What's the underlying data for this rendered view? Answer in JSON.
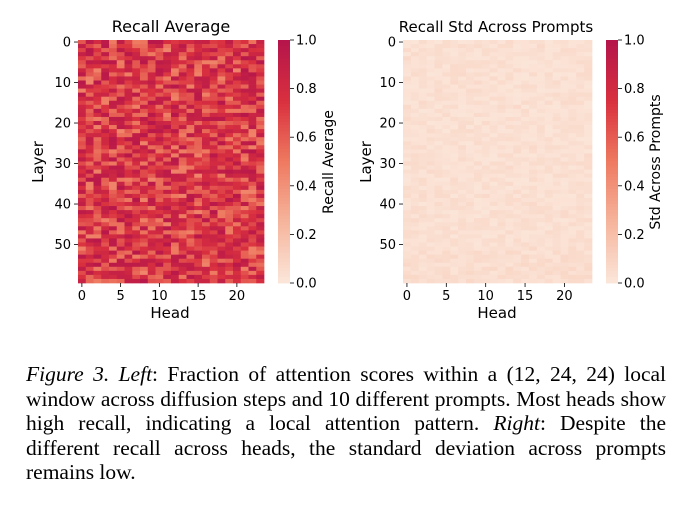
{
  "chart_data": [
    {
      "type": "heatmap",
      "title": "Recall Average",
      "xlabel": "Head",
      "ylabel": "Layer",
      "x_ticks": [
        0,
        5,
        10,
        15,
        20
      ],
      "y_ticks": [
        0,
        10,
        20,
        30,
        40,
        50
      ],
      "n_heads": 24,
      "n_layers": 60,
      "colorbar_label": "Recall Average",
      "colorbar_ticks": [
        "0.0",
        "0.2",
        "0.4",
        "0.6",
        "0.8",
        "1.0"
      ],
      "vmin": 0.0,
      "vmax": 1.0,
      "value_range_estimate": [
        0.45,
        0.98
      ],
      "colormap": [
        "#fbe5d8",
        "#f6b49c",
        "#ee7a60",
        "#d9303f",
        "#b5154b"
      ]
    },
    {
      "type": "heatmap",
      "title": "Recall Std Across Prompts",
      "xlabel": "Head",
      "ylabel": "Layer",
      "x_ticks": [
        0,
        5,
        10,
        15,
        20
      ],
      "y_ticks": [
        0,
        10,
        20,
        30,
        40,
        50
      ],
      "n_heads": 24,
      "n_layers": 60,
      "colorbar_label": "Std Across Prompts",
      "colorbar_ticks": [
        "0.0",
        "0.2",
        "0.4",
        "0.6",
        "0.8",
        "1.0"
      ],
      "vmin": 0.0,
      "vmax": 1.0,
      "value_range_estimate": [
        0.0,
        0.06
      ],
      "colormap": [
        "#fbe5d8",
        "#f6b49c",
        "#ee7a60",
        "#d9303f",
        "#b5154b"
      ]
    }
  ],
  "caption": {
    "label": "Figure 3.",
    "left_label": "Left",
    "left_text": ": Fraction of attention scores within a (12, 24, 24) local window across diffusion steps and 10 different prompts. Most heads show high recall, indicating a local attention pattern. ",
    "right_label": "Right",
    "right_text": ": Despite the different recall across heads, the standard deviation across prompts remains low."
  }
}
